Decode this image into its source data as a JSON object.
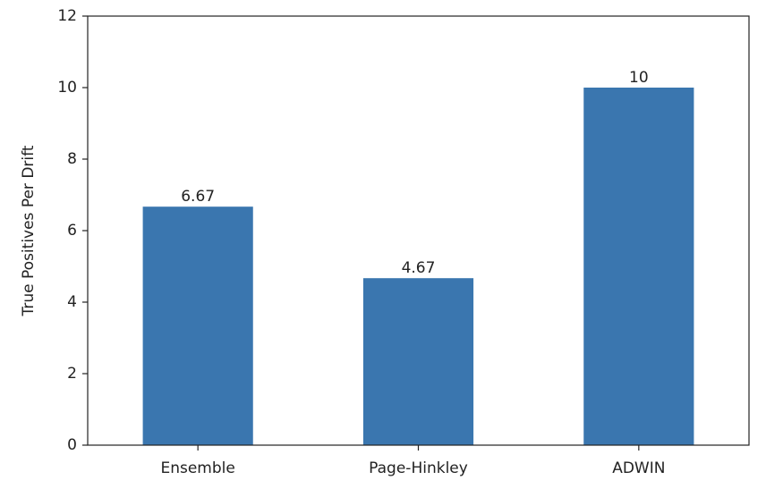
{
  "chart_data": {
    "type": "bar",
    "y_label": "True Positives Per Drift",
    "categories": [
      "Ensemble",
      "Page-Hinkley",
      "ADWIN"
    ],
    "values": [
      6.67,
      4.67,
      10
    ],
    "color": "#3a76af",
    "ylim": [
      0,
      12
    ],
    "yticks": [
      0,
      2,
      4,
      6,
      8,
      10,
      12
    ],
    "grid": false
  }
}
